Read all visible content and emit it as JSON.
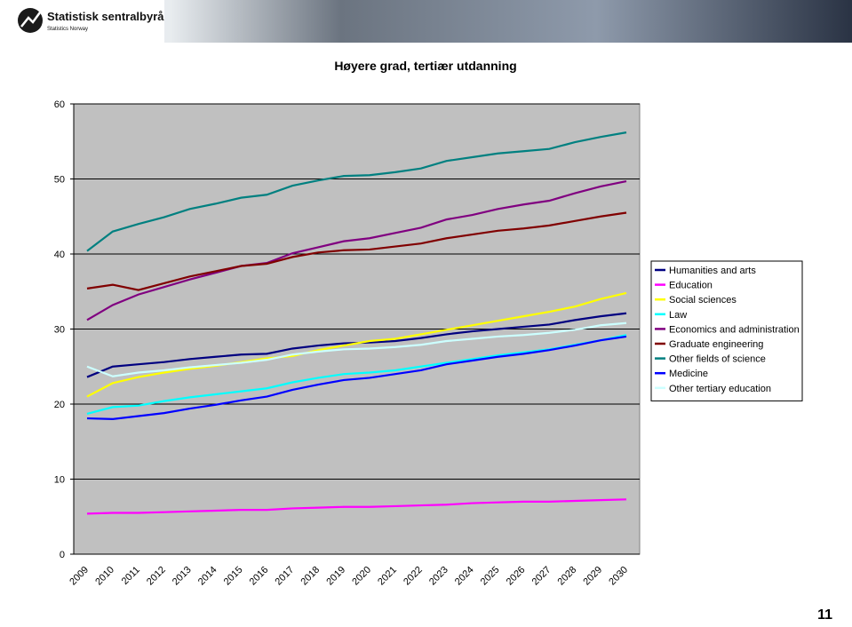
{
  "header": {
    "logo_title": "Statistisk sentralbyrå",
    "logo_subtitle": "Statistics Norway"
  },
  "page_number": "11",
  "chart_data": {
    "type": "line",
    "title": "Høyere grad, tertiær utdanning",
    "categories": [
      "2009",
      "2010",
      "2011",
      "2012",
      "2013",
      "2014",
      "2015",
      "2016",
      "2017",
      "2018",
      "2019",
      "2020",
      "2021",
      "2022",
      "2023",
      "2024",
      "2025",
      "2026",
      "2027",
      "2028",
      "2029",
      "2030"
    ],
    "ylim": [
      0,
      60
    ],
    "yticks": [
      0,
      10,
      20,
      30,
      40,
      50,
      60
    ],
    "grid": true,
    "legend": "right",
    "series": [
      {
        "name": "Humanities and arts",
        "color": "#000080",
        "values": [
          23.6,
          25.0,
          25.3,
          25.6,
          26.0,
          26.3,
          26.6,
          26.7,
          27.4,
          27.8,
          28.1,
          28.2,
          28.4,
          28.8,
          29.3,
          29.7,
          30.0,
          30.3,
          30.6,
          31.2,
          31.7,
          32.1
        ]
      },
      {
        "name": "Education",
        "color": "#ff00ff",
        "values": [
          5.4,
          5.5,
          5.5,
          5.6,
          5.7,
          5.8,
          5.9,
          5.9,
          6.1,
          6.2,
          6.3,
          6.3,
          6.4,
          6.5,
          6.6,
          6.8,
          6.9,
          7.0,
          7.0,
          7.1,
          7.2,
          7.3
        ]
      },
      {
        "name": "Social sciences",
        "color": "#ffff00",
        "values": [
          21.0,
          22.8,
          23.6,
          24.2,
          24.7,
          25.1,
          25.6,
          26.1,
          26.4,
          27.2,
          27.8,
          28.4,
          28.7,
          29.3,
          29.9,
          30.5,
          31.1,
          31.7,
          32.3,
          33.0,
          34.0,
          34.8
        ]
      },
      {
        "name": "Law",
        "color": "#00ffff",
        "values": [
          18.7,
          19.6,
          19.8,
          20.4,
          20.9,
          21.3,
          21.7,
          22.1,
          22.9,
          23.5,
          24.0,
          24.2,
          24.5,
          25.0,
          25.5,
          26.0,
          26.5,
          26.9,
          27.3,
          27.9,
          28.5,
          29.2
        ]
      },
      {
        "name": "Economics and administration",
        "color": "#800080",
        "values": [
          31.2,
          33.2,
          34.6,
          35.6,
          36.6,
          37.5,
          38.4,
          38.8,
          40.1,
          40.9,
          41.7,
          42.1,
          42.8,
          43.5,
          44.6,
          45.2,
          46.0,
          46.6,
          47.1,
          48.1,
          49.0,
          49.7
        ]
      },
      {
        "name": "Graduate engineering",
        "color": "#800000",
        "values": [
          35.4,
          35.9,
          35.2,
          36.1,
          37.0,
          37.7,
          38.4,
          38.7,
          39.6,
          40.2,
          40.5,
          40.6,
          41.0,
          41.4,
          42.1,
          42.6,
          43.1,
          43.4,
          43.8,
          44.4,
          45.0,
          45.5
        ]
      },
      {
        "name": "Other fields of science",
        "color": "#008080",
        "values": [
          40.4,
          43.0,
          44.0,
          44.9,
          46.0,
          46.7,
          47.5,
          47.9,
          49.1,
          49.8,
          50.4,
          50.5,
          50.9,
          51.4,
          52.4,
          52.9,
          53.4,
          53.7,
          54.0,
          54.9,
          55.6,
          56.2
        ]
      },
      {
        "name": "Medicine",
        "color": "#0000ff",
        "values": [
          18.1,
          18.0,
          18.4,
          18.8,
          19.4,
          19.9,
          20.5,
          21.0,
          21.9,
          22.6,
          23.2,
          23.5,
          24.0,
          24.5,
          25.3,
          25.8,
          26.3,
          26.7,
          27.2,
          27.8,
          28.5,
          29.0
        ]
      },
      {
        "name": "Other tertiary education",
        "color": "#ccffff",
        "values": [
          25.0,
          23.7,
          24.2,
          24.5,
          24.9,
          25.2,
          25.5,
          25.9,
          26.6,
          27.0,
          27.3,
          27.4,
          27.6,
          27.9,
          28.4,
          28.7,
          29.0,
          29.2,
          29.5,
          29.9,
          30.5,
          30.8
        ]
      }
    ]
  }
}
